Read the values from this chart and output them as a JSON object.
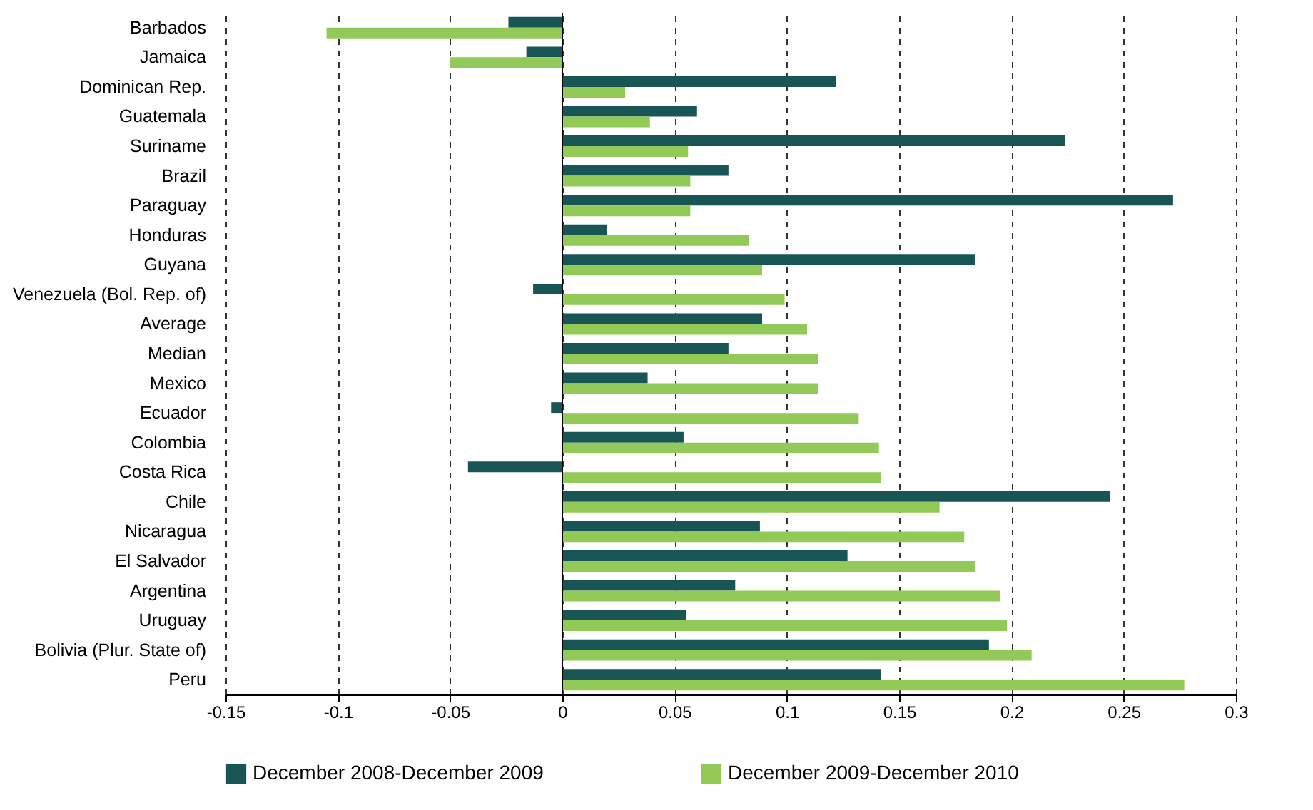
{
  "chart_data": {
    "type": "bar",
    "orientation": "horizontal",
    "categories": [
      "Barbados",
      "Jamaica",
      "Dominican Rep.",
      "Guatemala",
      "Suriname",
      "Brazil",
      "Paraguay",
      "Honduras",
      "Guyana",
      "Venezuela (Bol. Rep. of)",
      "Average",
      "Median",
      "Mexico",
      "Ecuador",
      "Colombia",
      "Costa Rica",
      "Chile",
      "Nicaragua",
      "El Salvador",
      "Argentina",
      "Uruguay",
      "Bolivia (Plur. State of)",
      "Peru"
    ],
    "series": [
      {
        "name": "December 2008-December 2009",
        "color": "#1a5555",
        "values": [
          -0.024,
          -0.016,
          0.122,
          0.06,
          0.224,
          0.074,
          0.272,
          0.02,
          0.184,
          -0.013,
          0.089,
          0.074,
          0.038,
          -0.005,
          0.054,
          -0.042,
          0.244,
          0.088,
          0.127,
          0.077,
          0.055,
          0.19,
          0.142
        ]
      },
      {
        "name": "December 2009-December 2010",
        "color": "#92c957",
        "values": [
          -0.105,
          -0.05,
          0.028,
          0.039,
          0.056,
          0.057,
          0.057,
          0.083,
          0.089,
          0.099,
          0.109,
          0.114,
          0.114,
          0.132,
          0.141,
          0.142,
          0.168,
          0.179,
          0.184,
          0.195,
          0.198,
          0.209,
          0.277
        ]
      }
    ],
    "xlim": [
      -0.15,
      0.3
    ],
    "xticks": [
      -0.15,
      -0.1,
      -0.05,
      0,
      0.05,
      0.1,
      0.15,
      0.2,
      0.25,
      0.3
    ],
    "grid": "x",
    "legend": "bottom"
  }
}
